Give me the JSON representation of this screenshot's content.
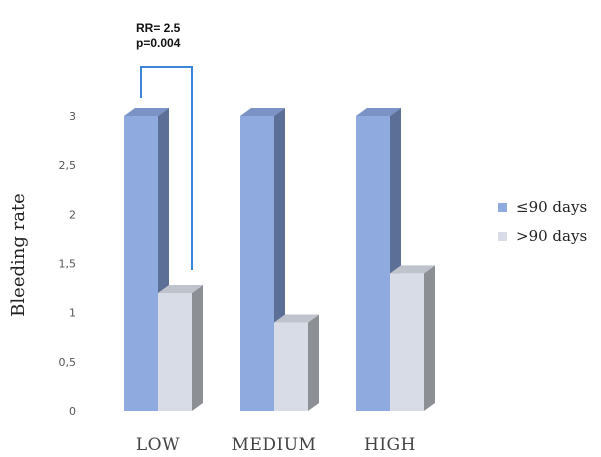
{
  "chart_data": {
    "type": "bar",
    "categories": [
      "LOW",
      "MEDIUM",
      "HIGH"
    ],
    "series": [
      {
        "name": "≤90 days",
        "values": [
          3.0,
          3.0,
          3.0
        ],
        "color": "#8eaadf"
      },
      {
        "name": ">90 days",
        "values": [
          1.2,
          0.9,
          1.4
        ],
        "color": "#d8dce6"
      }
    ],
    "ylabel": "Bleeding rate",
    "ylim": [
      0,
      3
    ],
    "yticks": [
      "0",
      "0,5",
      "1",
      "1,5",
      "2",
      "2,5",
      "3"
    ],
    "yticks_values": [
      0,
      0.5,
      1,
      1.5,
      2,
      2.5,
      3
    ],
    "grid": false,
    "legend_position": "right",
    "annotation": {
      "line1": "RR= 2.5",
      "line2": "p=0.004",
      "bracket_color": "#3a86d8"
    }
  }
}
